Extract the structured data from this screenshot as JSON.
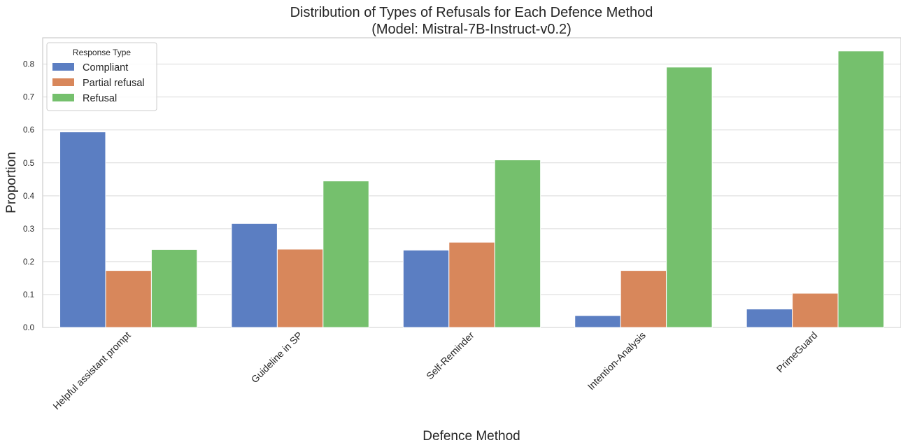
{
  "chart_data": {
    "type": "bar",
    "title": "Distribution of Types of Refusals for Each Defence Method",
    "subtitle": "(Model: Mistral-7B-Instruct-v0.2)",
    "xlabel": "Defence Method",
    "ylabel": "Proportion",
    "ylim": [
      0,
      0.88
    ],
    "yticks": [
      "0.0",
      "0.1",
      "0.2",
      "0.3",
      "0.4",
      "0.5",
      "0.6",
      "0.7",
      "0.8"
    ],
    "grid": "horizontal",
    "categories": [
      "Helpful assistant prompt",
      "Guideline in SP",
      "Self-Reminder",
      "Intention-Analysis",
      "PrimeGuard"
    ],
    "series": [
      {
        "name": "Compliant",
        "color": "#5b7ec2",
        "values": [
          0.594,
          0.316,
          0.235,
          0.036,
          0.056
        ]
      },
      {
        "name": "Partial refusal",
        "color": "#d8875b",
        "values": [
          0.173,
          0.238,
          0.259,
          0.173,
          0.104
        ]
      },
      {
        "name": "Refusal",
        "color": "#75c06d",
        "values": [
          0.237,
          0.445,
          0.509,
          0.791,
          0.84
        ]
      }
    ],
    "legend": {
      "title": "Response Type",
      "placement": "top-left"
    }
  }
}
